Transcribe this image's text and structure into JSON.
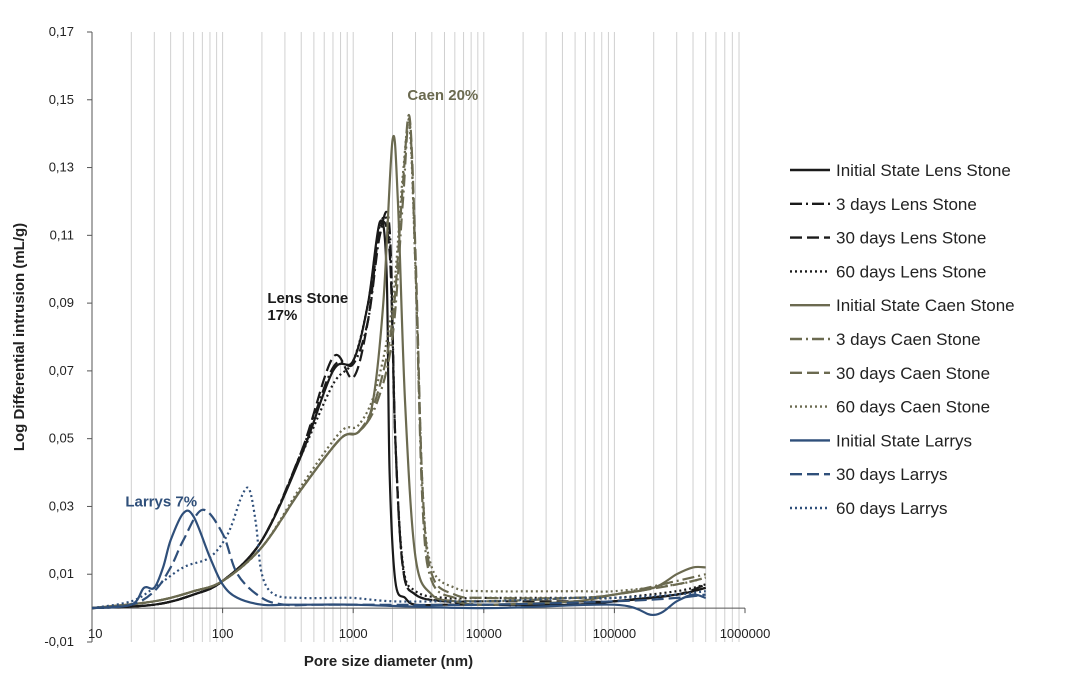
{
  "chart_data": {
    "type": "line",
    "title": "",
    "xlabel": "Pore size diameter (nm)",
    "ylabel": "Log Differential intrusion (mL/g)",
    "x_scale": "log",
    "xlim": [
      10,
      1000000
    ],
    "ylim": [
      -0.01,
      0.17
    ],
    "x_ticks": [
      10,
      100,
      1000,
      10000,
      100000,
      1000000
    ],
    "x_tick_labels": [
      "10",
      "100",
      "1000",
      "10000",
      "100000",
      "1000000"
    ],
    "y_ticks": [
      -0.01,
      0.01,
      0.03,
      0.05,
      0.07,
      0.09,
      0.11,
      0.13,
      0.15,
      0.17
    ],
    "y_tick_labels": [
      "-0,01",
      "0,01",
      "0,03",
      "0,05",
      "0,07",
      "0,09",
      "0,11",
      "0,13",
      "0,15",
      "0,17"
    ],
    "grid": "vertical minor gridlines",
    "legend_position": "right",
    "annotations": [
      {
        "text": "Caen 20%",
        "x": 2600,
        "y": 0.15,
        "color": "#6b6a50"
      },
      {
        "text": "Lens Stone",
        "x": 220,
        "y": 0.09,
        "color": "#1a1a1a"
      },
      {
        "text": "17%",
        "x": 220,
        "y": 0.085,
        "color": "#1a1a1a"
      },
      {
        "text": "Larrys 7%",
        "x": 18,
        "y": 0.03,
        "color": "#2f4f7a"
      }
    ],
    "series": [
      {
        "name": "Initial State Lens Stone",
        "color": "#1a1a1a",
        "dash": "solid",
        "x": [
          10,
          30,
          60,
          100,
          200,
          400,
          700,
          1000,
          1300,
          1600,
          1800,
          1900,
          2100,
          2500,
          3000,
          5000,
          10000,
          50000,
          100000,
          300000,
          500000
        ],
        "y": [
          0,
          0.001,
          0.004,
          0.008,
          0.02,
          0.045,
          0.07,
          0.073,
          0.09,
          0.114,
          0.1,
          0.04,
          0.008,
          0.003,
          0.001,
          0.001,
          0.001,
          0.001,
          0.002,
          0.004,
          0.006
        ]
      },
      {
        "name": "3 days Lens Stone",
        "color": "#1a1a1a",
        "dash": "12,4,2,4",
        "x": [
          10,
          30,
          60,
          100,
          200,
          400,
          700,
          1000,
          1300,
          1600,
          1900,
          2100,
          2400,
          3000,
          5000,
          10000,
          50000,
          100000,
          300000,
          500000
        ],
        "y": [
          0,
          0.001,
          0.004,
          0.008,
          0.02,
          0.046,
          0.071,
          0.072,
          0.085,
          0.11,
          0.112,
          0.05,
          0.012,
          0.004,
          0.002,
          0.001,
          0.001,
          0.002,
          0.004,
          0.006
        ]
      },
      {
        "name": "30 days Lens Stone",
        "color": "#1a1a1a",
        "dash": "12,5",
        "x": [
          10,
          30,
          60,
          100,
          200,
          400,
          700,
          1000,
          1300,
          1600,
          1900,
          2100,
          2400,
          3000,
          5000,
          10000,
          50000,
          100000,
          300000,
          500000
        ],
        "y": [
          0,
          0.001,
          0.004,
          0.008,
          0.02,
          0.046,
          0.074,
          0.068,
          0.085,
          0.112,
          0.105,
          0.05,
          0.012,
          0.004,
          0.002,
          0.002,
          0.002,
          0.002,
          0.004,
          0.007
        ]
      },
      {
        "name": "60 days Lens Stone",
        "color": "#1a1a1a",
        "dash": "2,3",
        "x": [
          10,
          30,
          60,
          100,
          200,
          400,
          700,
          1000,
          1300,
          1600,
          1900,
          2100,
          2400,
          3000,
          5000,
          10000,
          50000,
          100000,
          300000,
          500000
        ],
        "y": [
          0,
          0.001,
          0.004,
          0.008,
          0.02,
          0.045,
          0.066,
          0.073,
          0.09,
          0.113,
          0.108,
          0.05,
          0.013,
          0.005,
          0.003,
          0.003,
          0.003,
          0.003,
          0.005,
          0.007
        ]
      },
      {
        "name": "Initial State Caen Stone",
        "color": "#6b6a50",
        "dash": "solid",
        "x": [
          10,
          30,
          60,
          100,
          200,
          400,
          800,
          1100,
          1400,
          1700,
          2000,
          2200,
          2500,
          3000,
          4000,
          6000,
          10000,
          50000,
          100000,
          200000,
          300000,
          400000,
          500000
        ],
        "y": [
          0,
          0.002,
          0.005,
          0.008,
          0.018,
          0.035,
          0.05,
          0.052,
          0.06,
          0.09,
          0.138,
          0.12,
          0.06,
          0.015,
          0.004,
          0.002,
          0.001,
          0.002,
          0.004,
          0.006,
          0.01,
          0.012,
          0.012
        ]
      },
      {
        "name": "3 days Caen Stone",
        "color": "#6b6a50",
        "dash": "12,4,2,4",
        "x": [
          10,
          30,
          60,
          100,
          200,
          400,
          800,
          1100,
          1500,
          2000,
          2400,
          2700,
          3000,
          3400,
          4000,
          6000,
          10000,
          50000,
          100000,
          300000,
          500000
        ],
        "y": [
          0,
          0.002,
          0.005,
          0.008,
          0.018,
          0.035,
          0.05,
          0.052,
          0.06,
          0.08,
          0.12,
          0.144,
          0.1,
          0.03,
          0.008,
          0.003,
          0.002,
          0.003,
          0.004,
          0.008,
          0.01
        ]
      },
      {
        "name": "30 days Caen Stone",
        "color": "#6b6a50",
        "dash": "12,5",
        "x": [
          10,
          30,
          60,
          100,
          200,
          400,
          800,
          1100,
          1500,
          2000,
          2400,
          2700,
          3000,
          3400,
          4000,
          6000,
          10000,
          50000,
          100000,
          300000,
          500000
        ],
        "y": [
          0,
          0.002,
          0.005,
          0.008,
          0.018,
          0.035,
          0.05,
          0.052,
          0.062,
          0.085,
          0.125,
          0.145,
          0.105,
          0.035,
          0.01,
          0.004,
          0.003,
          0.003,
          0.004,
          0.007,
          0.009
        ]
      },
      {
        "name": "60 days Caen Stone",
        "color": "#6b6a50",
        "dash": "2,3",
        "x": [
          10,
          30,
          60,
          100,
          200,
          400,
          800,
          1100,
          1500,
          2000,
          2400,
          2700,
          3000,
          3400,
          4000,
          6000,
          10000,
          50000,
          100000,
          300000,
          500000
        ],
        "y": [
          0,
          0.002,
          0.005,
          0.008,
          0.018,
          0.036,
          0.052,
          0.054,
          0.065,
          0.09,
          0.128,
          0.142,
          0.1,
          0.035,
          0.012,
          0.006,
          0.005,
          0.005,
          0.005,
          0.007,
          0.009
        ]
      },
      {
        "name": "Initial State Larrys",
        "color": "#2f4f7a",
        "dash": "solid",
        "x": [
          10,
          20,
          25,
          30,
          35,
          40,
          50,
          60,
          80,
          100,
          130,
          200,
          300,
          500,
          1000,
          10000,
          100000,
          200000,
          300000,
          400000,
          500000
        ],
        "y": [
          0,
          0.001,
          0.006,
          0.006,
          0.012,
          0.02,
          0.028,
          0.027,
          0.015,
          0.007,
          0.003,
          0.001,
          0.001,
          0.001,
          0.001,
          0,
          0.001,
          -0.002,
          0.002,
          0.004,
          0.003
        ]
      },
      {
        "name": "30 days Larrys",
        "color": "#2f4f7a",
        "dash": "12,5",
        "x": [
          10,
          20,
          30,
          40,
          50,
          70,
          100,
          130,
          200,
          300,
          500,
          1000,
          10000,
          100000,
          300000,
          500000
        ],
        "y": [
          0,
          0.001,
          0.005,
          0.012,
          0.02,
          0.029,
          0.022,
          0.01,
          0.003,
          0.001,
          0.001,
          0.001,
          0.001,
          0.002,
          0.003,
          0.004
        ]
      },
      {
        "name": "60 days Larrys",
        "color": "#2f4f7a",
        "dash": "2,3",
        "x": [
          10,
          20,
          30,
          50,
          80,
          110,
          140,
          160,
          180,
          200,
          250,
          400,
          700,
          1000,
          2000,
          5000,
          10000,
          50000,
          100000,
          300000,
          500000
        ],
        "y": [
          0,
          0.002,
          0.006,
          0.012,
          0.015,
          0.022,
          0.033,
          0.035,
          0.025,
          0.01,
          0.004,
          0.003,
          0.003,
          0.003,
          0.002,
          0.002,
          0.002,
          0.003,
          0.003,
          0.004,
          0.005
        ]
      }
    ]
  }
}
